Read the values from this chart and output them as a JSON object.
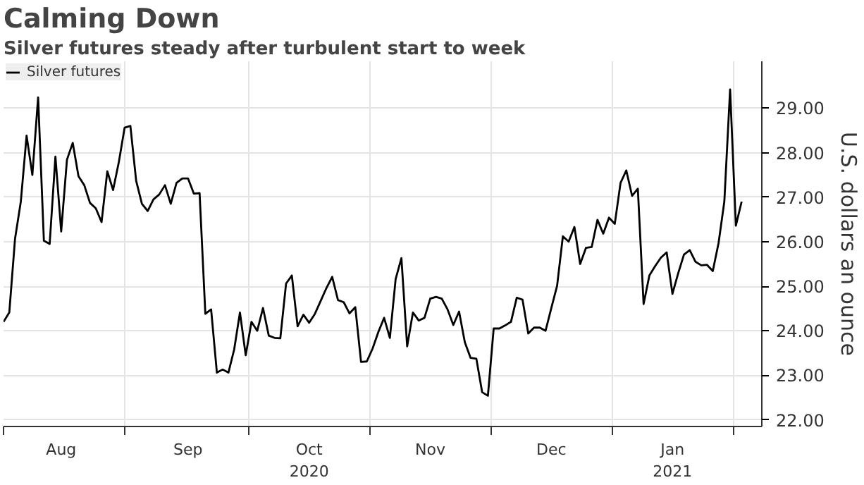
{
  "chart_data": {
    "type": "line",
    "title": "Calming Down",
    "subtitle": "Silver futures steady after turbulent start to week",
    "ylabel": "U.S. dollars an ounce",
    "categories": [
      null,
      null,
      null,
      null,
      null,
      null,
      null,
      null,
      null,
      null,
      "Aug",
      null,
      null,
      null,
      null,
      null,
      null,
      null,
      null,
      null,
      null,
      null,
      null,
      null,
      null,
      null,
      null,
      null,
      null,
      null,
      null,
      null,
      "Sep",
      null,
      null,
      null,
      null,
      null,
      null,
      null,
      null,
      null,
      null,
      null,
      null,
      null,
      null,
      null,
      null,
      null,
      null,
      null,
      null,
      "Oct\n2020",
      null,
      null,
      null,
      null,
      null,
      null,
      null,
      null,
      null,
      null,
      null,
      null,
      null,
      null,
      null,
      null,
      null,
      null,
      null,
      null,
      "Nov",
      null,
      null,
      null,
      null,
      null,
      null,
      null,
      null,
      null,
      null,
      null,
      null,
      null,
      null,
      null,
      null,
      null,
      null,
      null,
      null,
      "Dec",
      null,
      null,
      null,
      null,
      null,
      null,
      null,
      null,
      null,
      null,
      null,
      null,
      null,
      null,
      null,
      null,
      null,
      null,
      null,
      null,
      "Jan\n2021",
      null,
      null,
      null,
      null,
      null,
      null,
      null,
      null,
      null,
      null,
      null,
      null
    ],
    "series": [
      {
        "name": "Silver futures",
        "color": "#000000",
        "values": [
          24.2,
          24.41,
          26.07,
          26.9,
          28.38,
          27.5,
          29.24,
          26.02,
          25.95,
          27.91,
          26.23,
          27.84,
          28.22,
          27.47,
          27.27,
          26.87,
          26.75,
          26.44,
          27.58,
          27.16,
          27.79,
          28.56,
          28.6,
          27.37,
          26.85,
          26.69,
          26.95,
          27.06,
          27.27,
          26.85,
          27.32,
          27.42,
          27.42,
          27.08,
          27.09,
          24.38,
          24.48,
          23.06,
          23.13,
          23.06,
          23.58,
          24.41,
          23.45,
          24.2,
          24.0,
          24.51,
          23.89,
          23.84,
          23.83,
          25.06,
          25.24,
          24.1,
          24.36,
          24.18,
          24.38,
          24.67,
          24.96,
          25.21,
          24.69,
          24.64,
          24.39,
          24.53,
          23.3,
          23.31,
          23.6,
          23.97,
          24.29,
          23.84,
          25.16,
          25.63,
          23.65,
          24.41,
          24.23,
          24.29,
          24.72,
          24.76,
          24.72,
          24.48,
          24.13,
          24.43,
          23.74,
          23.39,
          23.37,
          22.62,
          22.54,
          24.05,
          24.05,
          24.12,
          24.2,
          24.74,
          24.7,
          23.94,
          24.07,
          24.07,
          24.0,
          24.51,
          25.01,
          26.12,
          26.0,
          26.33,
          25.5,
          25.86,
          25.88,
          26.49,
          26.18,
          26.54,
          26.4,
          27.32,
          27.6,
          27.03,
          27.19,
          24.6,
          25.24,
          25.45,
          25.64,
          25.76,
          24.83,
          25.29,
          25.71,
          25.81,
          25.55,
          25.47,
          25.48,
          25.34,
          25.97,
          26.9,
          29.42,
          26.36,
          26.9
        ]
      }
    ],
    "ylim": [
      21.85,
      30.05
    ],
    "yticks": [
      {
        "value": 22,
        "label": "22.00"
      },
      {
        "value": 23,
        "label": "23.00"
      },
      {
        "value": 24,
        "label": "24.00"
      },
      {
        "value": 25,
        "label": "25.00"
      },
      {
        "value": 26,
        "label": "26.00"
      },
      {
        "value": 27,
        "label": "27.00"
      },
      {
        "value": 28,
        "label": "28.00"
      },
      {
        "value": 29,
        "label": "29.00"
      }
    ],
    "grid": true,
    "legend": "top left",
    "line_style": "solid",
    "marker": "none"
  }
}
